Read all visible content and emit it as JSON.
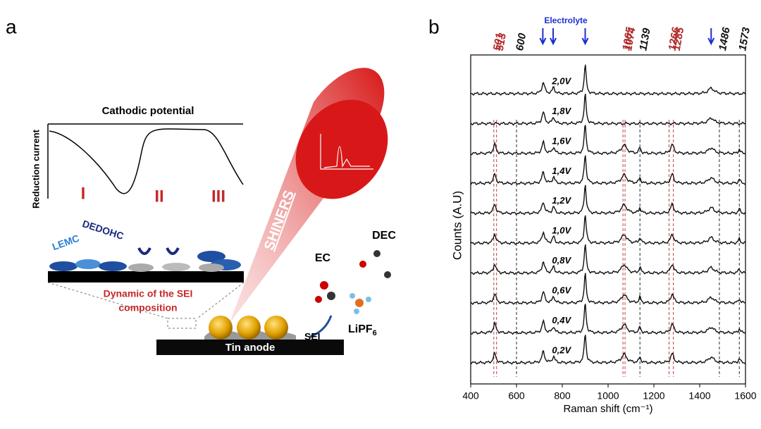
{
  "panel_a": {
    "label": "a",
    "axis_x": "Cathodic potential",
    "axis_y": "Reduction current",
    "regions": [
      "I",
      "II",
      "III"
    ],
    "species": [
      "LEMC",
      "DEDOHC"
    ],
    "sei_caption": [
      "Dynamic of the SEI",
      "composition"
    ],
    "technique": "SHINERS",
    "molecules": [
      "EC",
      "DEC"
    ],
    "salt": {
      "base": "LiPF",
      "sub": "6"
    },
    "sei": "SEI",
    "anode": "Tin anode"
  },
  "panel_b": {
    "label": "b",
    "xlabel": "Raman shift (cm⁻¹)",
    "ylabel": "Counts (A.U)",
    "xlim": [
      400,
      1600
    ],
    "xticks": [
      400,
      600,
      800,
      1000,
      1200,
      1400,
      1600
    ],
    "electrolyte": "Electrolyte",
    "peaks": [
      {
        "value": 501,
        "color": "#b22a2a"
      },
      {
        "value": 513,
        "color": "#b22a2a"
      },
      {
        "value": 600,
        "color": "#111111"
      },
      {
        "value": 1065,
        "color": "#b22a2a"
      },
      {
        "value": 1074,
        "color": "#b22a2a"
      },
      {
        "value": 1139,
        "color": "#111111"
      },
      {
        "value": 1266,
        "color": "#b22a2a"
      },
      {
        "value": 1285,
        "color": "#b22a2a"
      },
      {
        "value": 1486,
        "color": "#111111"
      },
      {
        "value": 1573,
        "color": "#111111"
      }
    ],
    "voltages": [
      "2,0V",
      "1,8V",
      "1,6V",
      "1,4V",
      "1,2V",
      "1,0V",
      "0,8V",
      "0,6V",
      "0,4V",
      "0,2V"
    ]
  }
}
